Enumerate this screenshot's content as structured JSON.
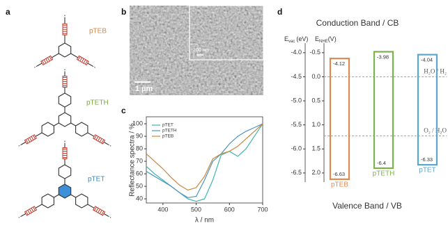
{
  "panel_a": {
    "panel_label": "a",
    "polymers": [
      {
        "name": "pTEB",
        "color": "#d0894a"
      },
      {
        "name": "pTETH",
        "color": "#78a83c"
      },
      {
        "name": "pTET",
        "color": "#3f87b8"
      }
    ]
  },
  "panel_b": {
    "panel_label": "b",
    "inset_scale": "200 nm",
    "scale": "1 µm"
  },
  "chart_data": [
    {
      "type": "line",
      "panel_label": "c",
      "xlabel": "λ / nm",
      "ylabel": "Reflectance spectra / %",
      "x": [
        350,
        375,
        400,
        425,
        450,
        475,
        500,
        525,
        550,
        575,
        600,
        625,
        650,
        675,
        700
      ],
      "xlim": [
        350,
        700
      ],
      "xticks": [
        400,
        500,
        600,
        700
      ],
      "ylim": [
        36.7,
        105.6
      ],
      "yticks": [
        40,
        50,
        60,
        70,
        80,
        90,
        100
      ],
      "legend": "upper left",
      "series": [
        {
          "name": "pTET",
          "color": "#3fb5ae",
          "values": [
            66,
            60,
            55,
            50,
            45,
            40,
            38,
            40,
            55,
            75,
            78,
            74,
            80,
            90,
            100
          ]
        },
        {
          "name": "pTETH",
          "color": "#4e92bf",
          "values": [
            62,
            58,
            54,
            50,
            45,
            41,
            42,
            55,
            70,
            76,
            84,
            90,
            94,
            97,
            100
          ]
        },
        {
          "name": "pTEB",
          "color": "#c8863c",
          "values": [
            76,
            70,
            64,
            57,
            51,
            47,
            49,
            58,
            72,
            76,
            78,
            82,
            88,
            94,
            100
          ]
        }
      ]
    },
    {
      "type": "band",
      "panel_label": "d",
      "title": "Conduction Band / CB",
      "xlabel": "Valence Band / VB",
      "ylabel": {
        "symbol": "E",
        "subscript": "vac",
        "unit": "(eV)"
      },
      "y2label": {
        "symbol": "E",
        "subscript": "NHE",
        "unit": "(V)"
      },
      "ylim": [
        -3.8,
        -6.69
      ],
      "yticks": [
        {
          "value": -4,
          "label": "-4.0"
        },
        -4.5,
        {
          "value": -5,
          "label": "-5.0"
        },
        -5.5,
        {
          "value": -6,
          "label": "-6.0"
        },
        -6.5
      ],
      "y2lim": [
        -0.7,
        2.19
      ],
      "y2ticks": [
        -0.5,
        {
          "value": 0,
          "label": "0.0"
        },
        0.5,
        {
          "value": 1,
          "label": "1.0"
        },
        1.5,
        {
          "value": 2,
          "label": "2.0"
        }
      ],
      "series": [
        {
          "name": "pTEB",
          "color": "#dc8a50",
          "values": [
            -4.12,
            -6.63
          ]
        },
        {
          "name": "pTETH",
          "color": "#7cb24a",
          "values": [
            -3.98,
            -6.4
          ]
        },
        {
          "name": "pTET",
          "color": "#5aa6cc",
          "values": [
            -4.04,
            -6.33
          ]
        }
      ],
      "ref_lines": [
        {
          "value": 0,
          "label": "H₂O / H₂"
        },
        {
          "value": 1.23,
          "label": "O₂ / H₂O"
        }
      ]
    }
  ]
}
